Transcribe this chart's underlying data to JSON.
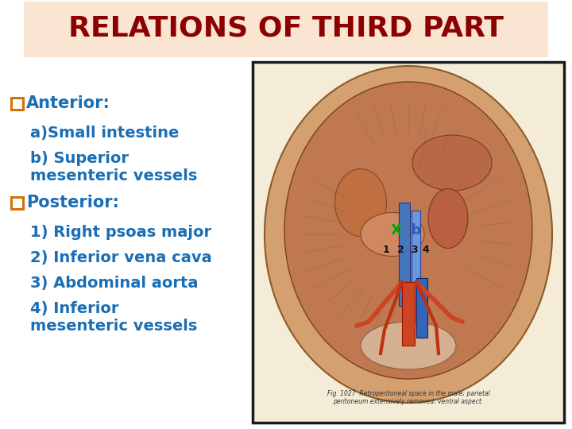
{
  "title": "RELATIONS OF THIRD PART",
  "title_color": "#8B0000",
  "title_bg_color": "#FAE5D3",
  "bg_color": "#FFFFFF",
  "label_color": "#1A6EB5",
  "bullet_color": "#D4720A",
  "anterior_label": "Anterior:",
  "anterior_items": [
    "a)Small intestine",
    "b) Superior\nmesenteric vessels"
  ],
  "posterior_label": "Posterior:",
  "posterior_items": [
    "1) Right psoas major",
    "2) Inferior vena cava",
    "3) Abdominal aorta",
    "4) Inferior\nmesenteric vessels"
  ],
  "title_fontsize": 26,
  "label_fontsize": 15,
  "item_fontsize": 14,
  "figsize": [
    7.2,
    5.4
  ],
  "dpi": 100,
  "img_bg": "#F5ECD7",
  "img_border": "#1A1A1A",
  "body_outer_color": "#C8956A",
  "body_inner_color": "#B87040",
  "organ_color": "#C06030",
  "vessel_blue": "#5588CC",
  "vessel_red": "#CC3311",
  "vessel_orange": "#CC7733",
  "muscle_color": "#B86040",
  "X_color": "#00AA00",
  "b_color": "#3355BB",
  "num_color": "#111111"
}
